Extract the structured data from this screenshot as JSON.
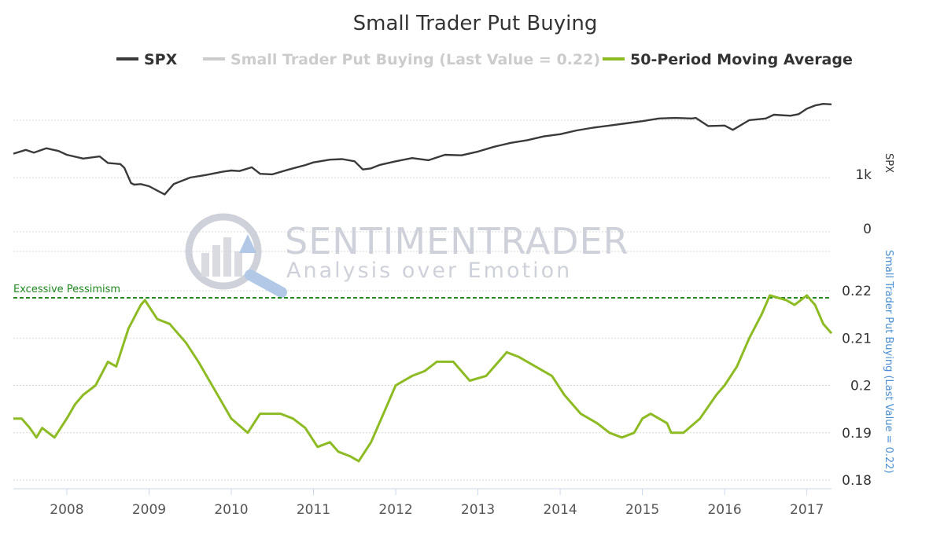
{
  "chart_data": {
    "type": "line",
    "title": "Small Trader Put Buying",
    "legend": [
      {
        "label": "SPX",
        "color": "#3a3a3c",
        "dim": false
      },
      {
        "label": "Small Trader Put Buying (Last Value = 0.22)",
        "color": "#cccccc",
        "dim": true
      },
      {
        "label": "50-Period Moving Average",
        "color": "#8dbb24",
        "dim": false
      }
    ],
    "legend_position": "top",
    "x_ticks": [
      "2008",
      "2009",
      "2010",
      "2011",
      "2012",
      "2013",
      "2014",
      "2015",
      "2016",
      "2017"
    ],
    "x_range": [
      2007.35,
      2017.3
    ],
    "upper_panel": {
      "ylabel": "SPX",
      "y_ticks": [
        "1k",
        "0"
      ],
      "grid": true,
      "series": [
        {
          "name": "SPX",
          "color": "#3a3a3c",
          "x": [
            2007.35,
            2007.5,
            2007.6,
            2007.75,
            2007.9,
            2008.0,
            2008.2,
            2008.4,
            2008.5,
            2008.65,
            2008.7,
            2008.78,
            2008.82,
            2008.9,
            2009.0,
            2009.1,
            2009.19,
            2009.3,
            2009.5,
            2009.7,
            2009.9,
            2010.0,
            2010.1,
            2010.25,
            2010.35,
            2010.5,
            2010.7,
            2010.9,
            2011.0,
            2011.2,
            2011.35,
            2011.5,
            2011.6,
            2011.7,
            2011.8,
            2012.0,
            2012.2,
            2012.4,
            2012.6,
            2012.8,
            2013.0,
            2013.2,
            2013.4,
            2013.6,
            2013.8,
            2014.0,
            2014.2,
            2014.4,
            2014.6,
            2014.8,
            2015.0,
            2015.2,
            2015.4,
            2015.6,
            2015.65,
            2015.8,
            2016.0,
            2016.1,
            2016.3,
            2016.5,
            2016.6,
            2016.8,
            2016.9,
            2017.0,
            2017.1,
            2017.2,
            2017.3
          ],
          "y": [
            1440,
            1510,
            1460,
            1540,
            1490,
            1420,
            1350,
            1390,
            1270,
            1250,
            1180,
            900,
            870,
            880,
            840,
            760,
            690,
            880,
            1000,
            1050,
            1110,
            1130,
            1120,
            1190,
            1070,
            1060,
            1150,
            1230,
            1280,
            1330,
            1340,
            1300,
            1150,
            1170,
            1230,
            1300,
            1360,
            1320,
            1420,
            1410,
            1480,
            1570,
            1640,
            1690,
            1760,
            1800,
            1870,
            1920,
            1960,
            2000,
            2040,
            2090,
            2100,
            2090,
            2100,
            1950,
            1960,
            1880,
            2060,
            2090,
            2160,
            2140,
            2170,
            2270,
            2330,
            2360,
            2350
          ]
        }
      ]
    },
    "lower_panel": {
      "ylabel": "Small Trader Put Buying (Last Value = 0.22)",
      "y_ticks": [
        0.18,
        0.19,
        0.2,
        0.21,
        0.22
      ],
      "ylim": [
        0.18,
        0.22
      ],
      "grid": true,
      "threshold": {
        "label": "Excessive Pessimism",
        "value": 0.2185,
        "color": "#1f8a1f"
      },
      "series": [
        {
          "name": "50-Period Moving Average",
          "color": "#8dbb24",
          "x": [
            2007.35,
            2007.45,
            2007.55,
            2007.63,
            2007.7,
            2007.85,
            2008.0,
            2008.1,
            2008.2,
            2008.35,
            2008.5,
            2008.6,
            2008.75,
            2008.9,
            2008.95,
            2009.1,
            2009.25,
            2009.45,
            2009.6,
            2009.8,
            2010.0,
            2010.2,
            2010.35,
            2010.45,
            2010.6,
            2010.75,
            2010.9,
            2011.05,
            2011.2,
            2011.3,
            2011.45,
            2011.55,
            2011.7,
            2011.85,
            2012.0,
            2012.2,
            2012.35,
            2012.5,
            2012.7,
            2012.9,
            2013.1,
            2013.25,
            2013.35,
            2013.5,
            2013.7,
            2013.9,
            2014.05,
            2014.25,
            2014.45,
            2014.6,
            2014.75,
            2014.9,
            2015.0,
            2015.1,
            2015.3,
            2015.35,
            2015.5,
            2015.7,
            2015.9,
            2016.0,
            2016.15,
            2016.3,
            2016.45,
            2016.55,
            2016.75,
            2016.85,
            2017.0,
            2017.1,
            2017.2,
            2017.3
          ],
          "y": [
            0.193,
            0.193,
            0.191,
            0.189,
            0.191,
            0.189,
            0.193,
            0.196,
            0.198,
            0.2,
            0.205,
            0.204,
            0.212,
            0.217,
            0.218,
            0.214,
            0.213,
            0.209,
            0.205,
            0.199,
            0.193,
            0.19,
            0.194,
            0.194,
            0.194,
            0.193,
            0.191,
            0.187,
            0.188,
            0.186,
            0.185,
            0.184,
            0.188,
            0.194,
            0.2,
            0.202,
            0.203,
            0.205,
            0.205,
            0.201,
            0.202,
            0.205,
            0.207,
            0.206,
            0.204,
            0.202,
            0.198,
            0.194,
            0.192,
            0.19,
            0.189,
            0.19,
            0.193,
            0.194,
            0.192,
            0.19,
            0.19,
            0.193,
            0.198,
            0.2,
            0.204,
            0.21,
            0.215,
            0.219,
            0.218,
            0.217,
            0.219,
            0.217,
            0.213,
            0.211
          ]
        }
      ]
    },
    "watermark": {
      "line1": "SENTIMENTRADER",
      "line2": "Analysis over Emotion"
    }
  }
}
